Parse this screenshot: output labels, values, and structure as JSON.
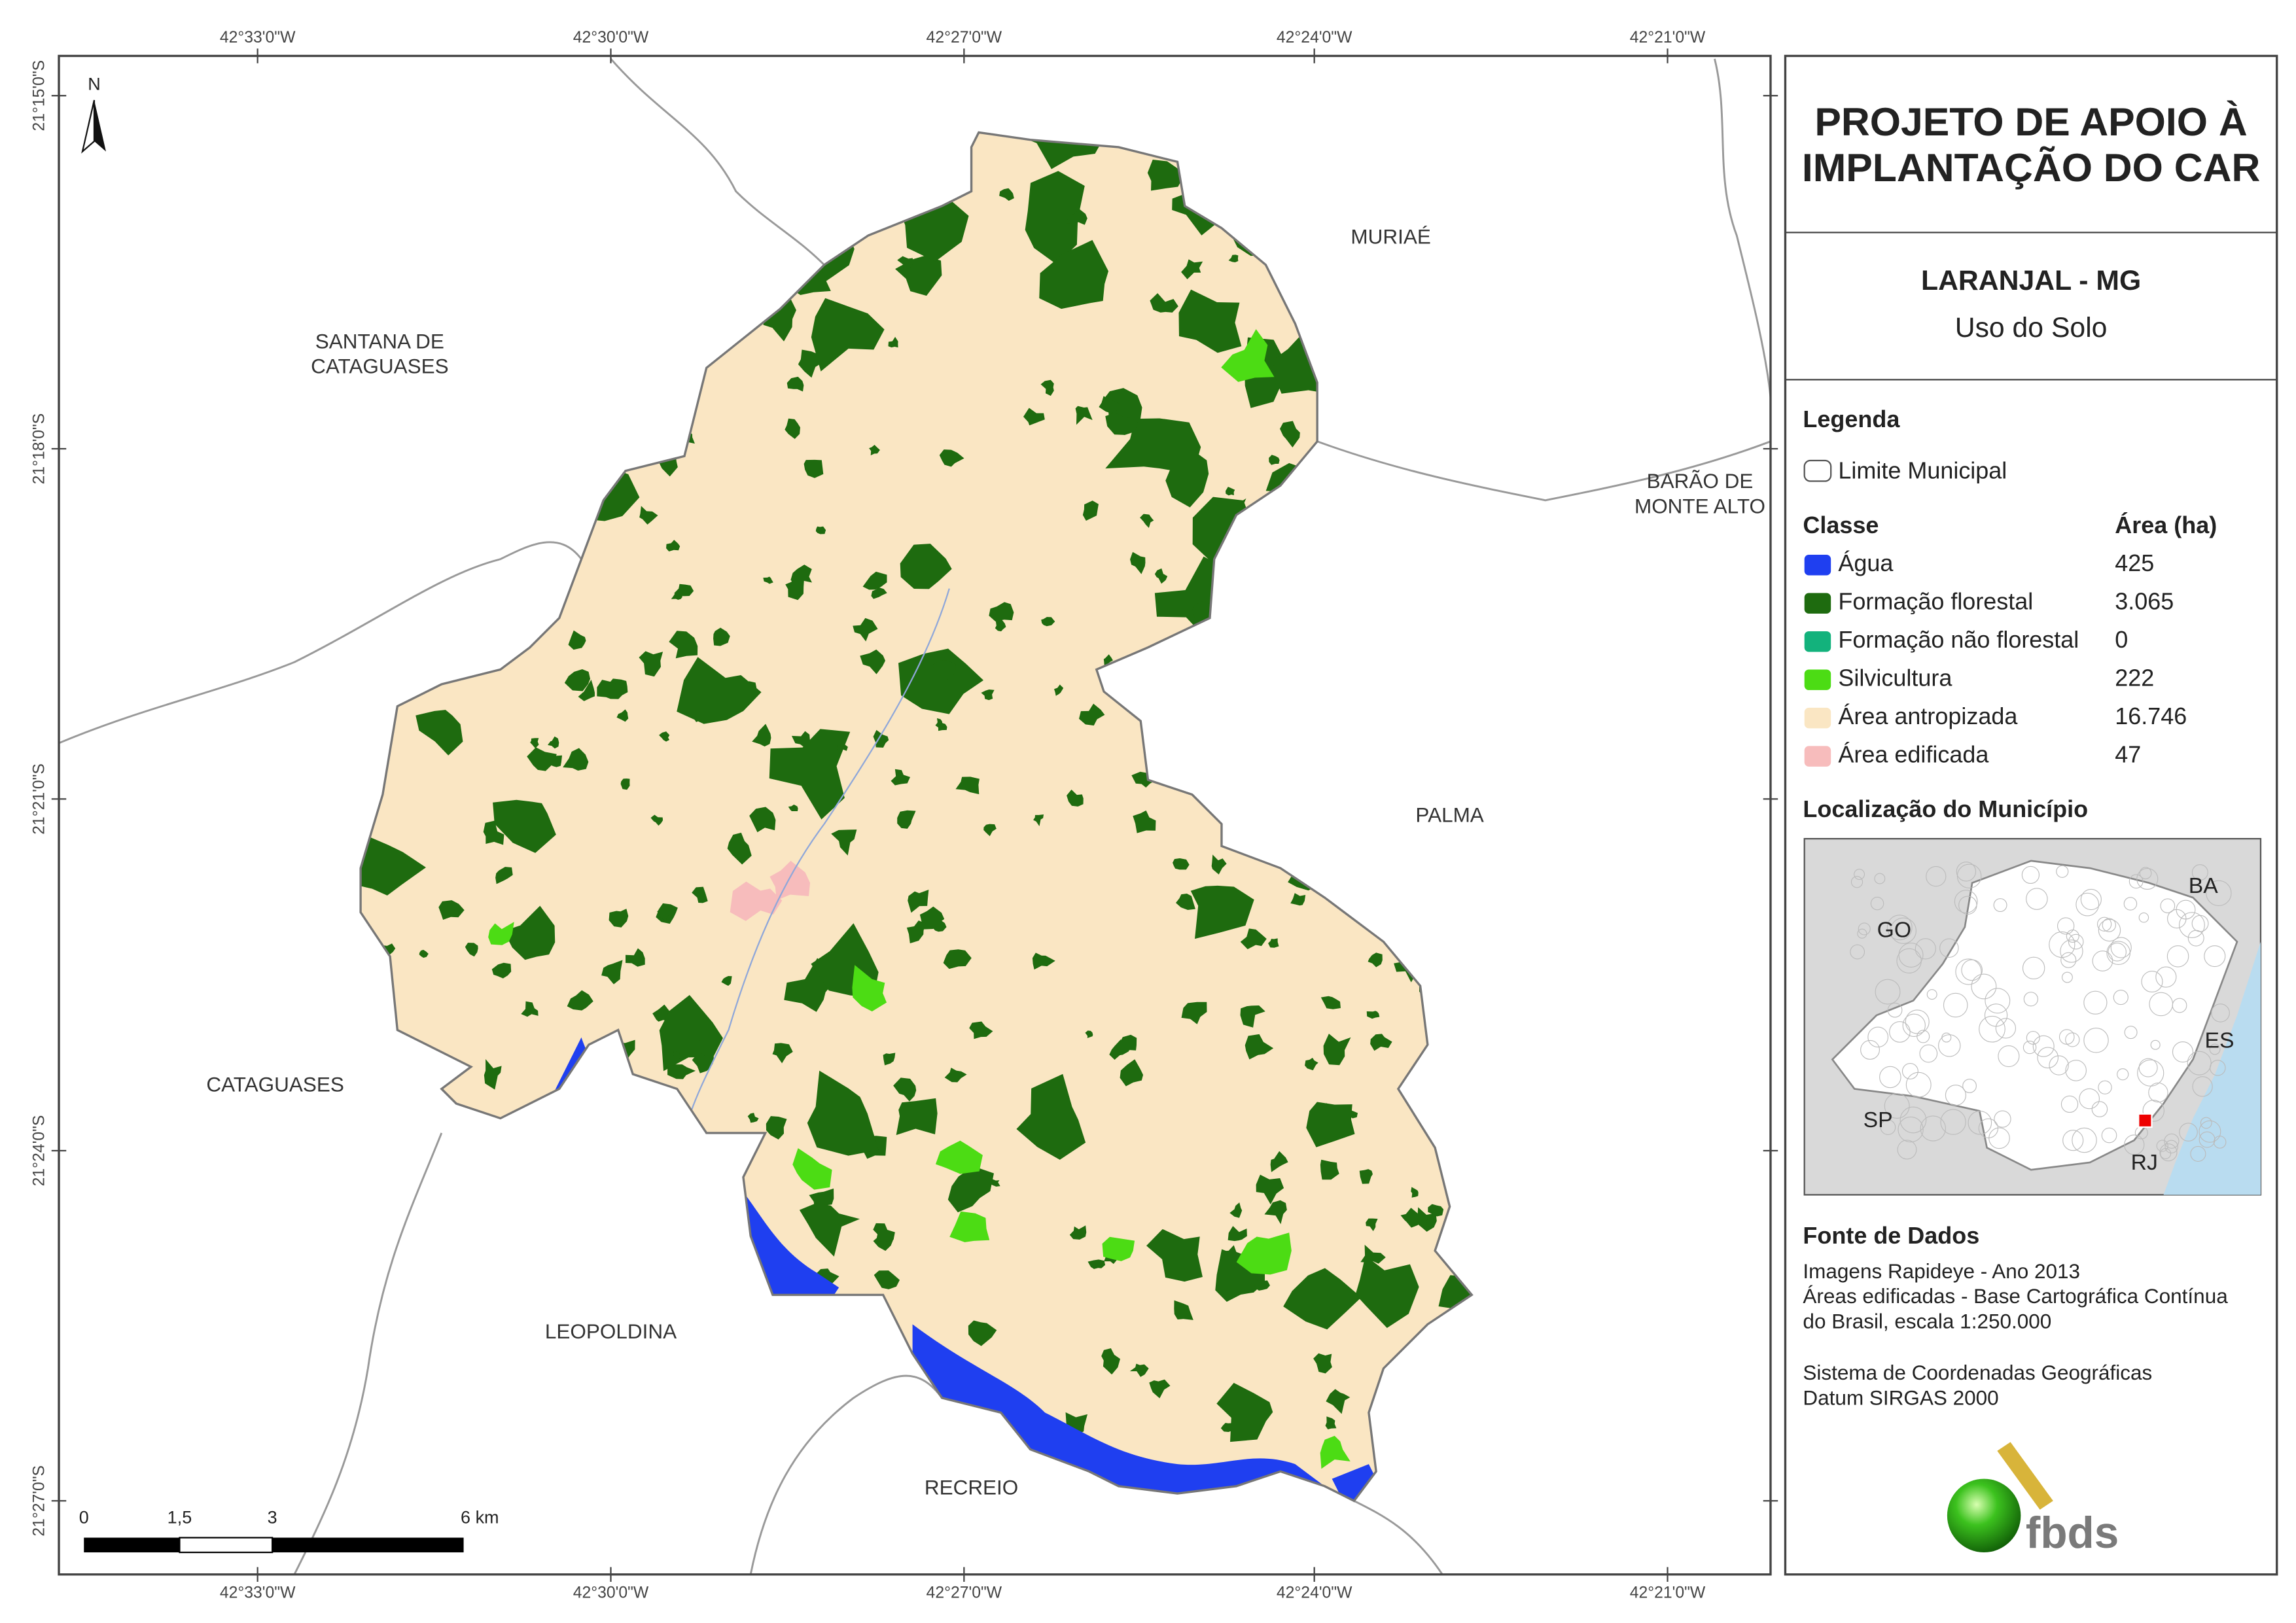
{
  "header": {
    "title": [
      "PROJETO DE APOIO À",
      "IMPLANTAÇÃO DO CAR"
    ],
    "municipality": "LARANJAL - MG",
    "subtitle": "Uso do Solo"
  },
  "legend": {
    "title": "Legenda",
    "boundary": "Limite Municipal",
    "class_header": "Classe",
    "area_header": "Área (ha)",
    "classes": [
      {
        "name": "Água",
        "area": "425",
        "color": "#1f3ff0"
      },
      {
        "name": "Formação florestal",
        "area": "3.065",
        "color": "#1e6b0f"
      },
      {
        "name": "Formação não florestal",
        "area": "0",
        "color": "#13b27c"
      },
      {
        "name": "Silvicultura",
        "area": "222",
        "color": "#4cdc14"
      },
      {
        "name": "Área antropizada",
        "area": "16.746",
        "color": "#fae6c3"
      },
      {
        "name": "Área edificada",
        "area": "47",
        "color": "#f7bcbc"
      }
    ]
  },
  "location": {
    "title": "Localização do Município",
    "labels": [
      "BA",
      "GO",
      "ES",
      "SP",
      "RJ"
    ]
  },
  "source": {
    "title": "Fonte de Dados",
    "lines": [
      "Imagens Rapideye - Ano 2013",
      "Áreas edificadas - Base Cartográfica Contínua",
      "do Brasil, escala 1:250.000",
      "Sistema de Coordenadas Geográficas",
      "Datum SIRGAS 2000"
    ]
  },
  "map": {
    "north": "N",
    "longitudes": [
      "42°33'0\"W",
      "42°30'0\"W",
      "42°27'0\"W",
      "42°24'0\"W",
      "42°21'0\"W"
    ],
    "latitudes": [
      "21°15'0\"S",
      "21°18'0\"S",
      "21°21'0\"S",
      "21°24'0\"S",
      "21°27'0\"S"
    ],
    "places": [
      [
        "MURIAÉ"
      ],
      [
        "SANTANA DE",
        "CATAGUASES"
      ],
      [
        "BARÃO DE",
        "MONTE ALTO"
      ],
      [
        "PALMA"
      ],
      [
        "CATAGUASES"
      ],
      [
        "LEOPOLDINA"
      ],
      [
        "RECREIO"
      ]
    ],
    "scale": [
      "0",
      "1,5",
      "3",
      "6 km"
    ]
  },
  "logo": "fbds"
}
